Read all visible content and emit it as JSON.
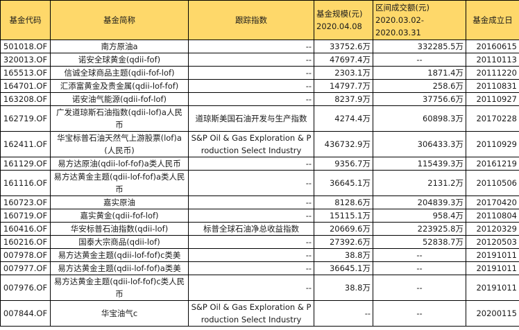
{
  "table": {
    "header": {
      "code": "基金代码",
      "name": "基金简称",
      "index": "跟踪指数",
      "scale_line1": "基金规模(元)",
      "scale_line2": "2020.04.08",
      "volume_line1": "区间成交额(元)",
      "volume_line2": "2020.03.02-",
      "volume_line3": "2020.03.31",
      "inception": "基金成立日"
    },
    "header_color": "#fed86a",
    "rows": [
      {
        "code": "501018.OF",
        "name": "南方原油a",
        "index": "--",
        "scale": "33752.6万",
        "volume": "332285.5万",
        "inception": "20160615",
        "tall": false
      },
      {
        "code": "320013.OF",
        "name": "诺安全球黄金(qdii-fof)",
        "index": "--",
        "scale": "47697.4万",
        "volume": "--",
        "inception": "20110113",
        "tall": false
      },
      {
        "code": "165513.OF",
        "name": "信诚全球商品主题(qdii-fof-lof)",
        "index": "--",
        "scale": "2303.1万",
        "volume": "1871.4万",
        "inception": "20111220",
        "tall": false
      },
      {
        "code": "164701.OF",
        "name": "汇添富黄金及贵金属(qdii-lof-fof)",
        "index": "--",
        "scale": "14797.7万",
        "volume": "258.6万",
        "inception": "20110831",
        "tall": false
      },
      {
        "code": "163208.OF",
        "name": "诺安油气能源(qdii-fof-lof)",
        "index": "--",
        "scale": "8237.9万",
        "volume": "37756.6万",
        "inception": "20110927",
        "tall": false
      },
      {
        "code": "162719.OF",
        "name": "广发道琼斯石油指数(qdii-lof)a人民币",
        "index": "道琼斯美国石油开发与生产指数",
        "scale": "4274.4万",
        "volume": "60898.3万",
        "inception": "20170228",
        "tall": true
      },
      {
        "code": "162411.OF",
        "name": "华宝标普石油天然气上游股票(lof)a(人民币)",
        "index": "S&P Oil & Gas Exploration & Production Select Industry",
        "scale": "436732.9万",
        "volume": "306433.3万",
        "inception": "20110929",
        "tall": true
      },
      {
        "code": "161129.OF",
        "name": "易方达原油(qdii-lof-fof)a类人民币",
        "index": "--",
        "scale": "9356.7万",
        "volume": "115439.3万",
        "inception": "20161219",
        "tall": false
      },
      {
        "code": "161116.OF",
        "name": "易方达黄金主题(qdii-lof-fof)a类人民币",
        "index": "--",
        "scale": "36645.1万",
        "volume": "2131.2万",
        "inception": "20110506",
        "tall": true
      },
      {
        "code": "160723.OF",
        "name": "嘉实原油",
        "index": "--",
        "scale": "8128.6万",
        "volume": "204839.3万",
        "inception": "20170420",
        "tall": false
      },
      {
        "code": "160719.OF",
        "name": "嘉实黄金(qdii-fof-lof)",
        "index": "--",
        "scale": "15115.1万",
        "volume": "958.4万",
        "inception": "20110804",
        "tall": false
      },
      {
        "code": "160416.OF",
        "name": "华安标普石油指数(qdii-lof)",
        "index": "标普全球石油净总收益指数",
        "scale": "20669.6万",
        "volume": "223925.8万",
        "inception": "20120329",
        "tall": false
      },
      {
        "code": "160216.OF",
        "name": "国泰大宗商品(qdii-lof)",
        "index": "--",
        "scale": "27392.6万",
        "volume": "52838.7万",
        "inception": "20120503",
        "tall": false
      },
      {
        "code": "007978.OF",
        "name": "易方达黄金主题(qdii-lof-fof)c类美",
        "index": "--",
        "scale": "38.8万",
        "volume": "--",
        "inception": "20191011",
        "tall": false
      },
      {
        "code": "007977.OF",
        "name": "易方达黄金主题(qdii-lof-fof)a类美",
        "index": "--",
        "scale": "36645.1万",
        "volume": "--",
        "inception": "20191011",
        "tall": false
      },
      {
        "code": "007976.OF",
        "name": "易方达黄金主题(qdii-lof-fof)c类人民币",
        "index": "--",
        "scale": "38.8万",
        "volume": "--",
        "inception": "20191011",
        "tall": true
      },
      {
        "code": "007844.OF",
        "name": "华宝油气c",
        "index": "S&P Oil & Gas Exploration & Production Select Industry",
        "scale": "--",
        "volume": "--",
        "inception": "20200115",
        "tall": true
      }
    ]
  }
}
